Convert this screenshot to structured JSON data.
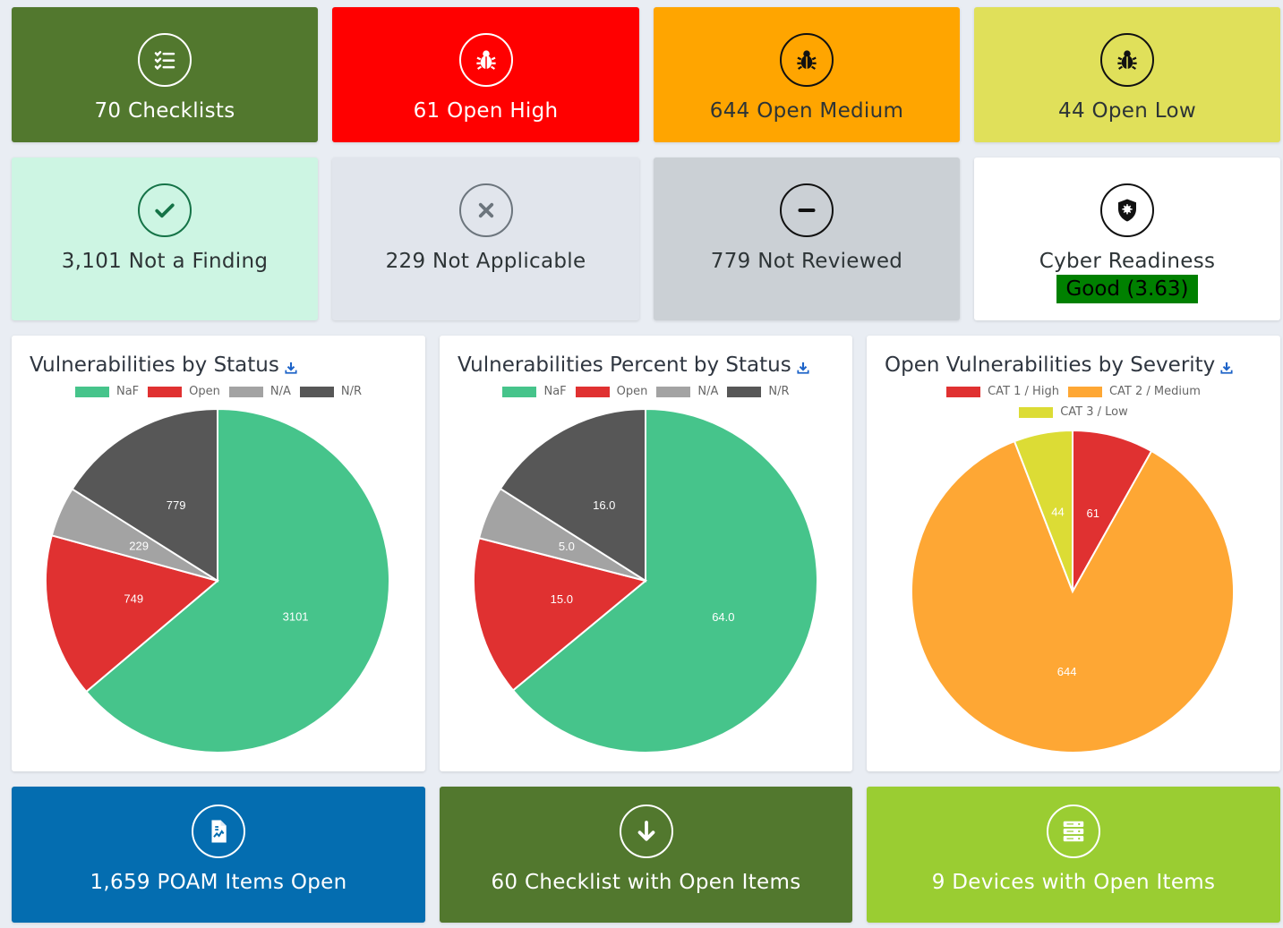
{
  "stat_cards": [
    {
      "label": "70 Checklists",
      "icon": "checklist-icon"
    },
    {
      "label": "61 Open High",
      "icon": "bug-icon"
    },
    {
      "label": "644 Open Medium",
      "icon": "bug-icon"
    },
    {
      "label": "44 Open Low",
      "icon": "bug-icon"
    },
    {
      "label": "3,101 Not a Finding",
      "icon": "check-icon"
    },
    {
      "label": "229 Not Applicable",
      "icon": "x-icon"
    },
    {
      "label": "779 Not Reviewed",
      "icon": "minus-icon"
    },
    {
      "label": "Cyber Readiness",
      "icon": "shield-virus-icon",
      "badge": "Good (3.63)"
    }
  ],
  "bottom_cards": [
    {
      "label": "1,659 POAM Items Open",
      "icon": "file-chart-icon"
    },
    {
      "label": "60 Checklist with Open Items",
      "icon": "arrow-down-icon"
    },
    {
      "label": "9 Devices with Open Items",
      "icon": "server-icon"
    }
  ],
  "colors": {
    "checklists": "#52782e",
    "high": "#ff0000",
    "medium": "#ffa500",
    "low": "#e0e05a",
    "naf_card": "#cdf5e3",
    "na_card": "#e1e5ec",
    "nr_card": "#cbd0d5",
    "poam": "#046db0",
    "checklist_open": "#52782e",
    "devices": "#9acd32",
    "naf": "#46c48b",
    "open": "#e03131",
    "na": "#a3a3a3",
    "nr": "#575757",
    "cat1": "#e03131",
    "cat2": "#fea734",
    "cat3": "#dcdc35"
  },
  "chart_data": [
    {
      "type": "pie",
      "title": "Vulnerabilities by Status",
      "categories": [
        "NaF",
        "Open",
        "N/A",
        "N/R"
      ],
      "values": [
        3101,
        749,
        229,
        779
      ],
      "labels": [
        "3101",
        "749",
        "229",
        "779"
      ]
    },
    {
      "type": "pie",
      "title": "Vulnerabilities Percent by Status",
      "categories": [
        "NaF",
        "Open",
        "N/A",
        "N/R"
      ],
      "values": [
        64.0,
        15.0,
        5.0,
        16.0
      ],
      "labels": [
        "64.0",
        "15.0",
        "5.0",
        "16.0"
      ]
    },
    {
      "type": "pie",
      "title": "Open Vulnerabilities by Severity",
      "categories": [
        "CAT 1 / High",
        "CAT 2 / Medium",
        "CAT 3 / Low"
      ],
      "values": [
        61,
        644,
        44
      ],
      "labels": [
        "61",
        "644",
        "44"
      ]
    }
  ]
}
